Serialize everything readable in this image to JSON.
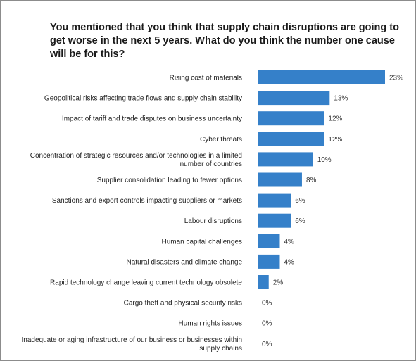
{
  "chart_data": {
    "type": "bar",
    "orientation": "horizontal",
    "title": "You mentioned that you think that supply chain disruptions are going to get worse in the next 5 years. What do you think the number one cause will be for this?",
    "categories": [
      [
        "Rising cost of materials"
      ],
      [
        "Geopolitical risks affecting trade flows and supply chain stability"
      ],
      [
        "Impact of tariff and trade disputes on business uncertainty"
      ],
      [
        "Cyber threats"
      ],
      [
        "Concentration of strategic resources and/or technologies in a limited",
        "number of countries"
      ],
      [
        "Supplier consolidation leading to fewer options"
      ],
      [
        "Sanctions and export controls impacting suppliers or markets"
      ],
      [
        "Labour disruptions"
      ],
      [
        "Human capital challenges"
      ],
      [
        "Natural disasters and climate change"
      ],
      [
        "Rapid technology change leaving current technology obsolete"
      ],
      [
        "Cargo theft and physical security risks"
      ],
      [
        "Human rights issues"
      ],
      [
        "Inadequate or aging infrastructure of our business or businesses within",
        "supply chains"
      ]
    ],
    "values": [
      23,
      13,
      12,
      12,
      10,
      8,
      6,
      6,
      4,
      4,
      2,
      0,
      0,
      0
    ],
    "value_labels": [
      "23%",
      "13%",
      "12%",
      "12%",
      "10%",
      "8%",
      "6%",
      "6%",
      "4%",
      "4%",
      "2%",
      "0%",
      "0%",
      "0%"
    ],
    "xlim": [
      0,
      23
    ],
    "bar_color": "#3580c9",
    "grid": false,
    "legend": "none"
  }
}
